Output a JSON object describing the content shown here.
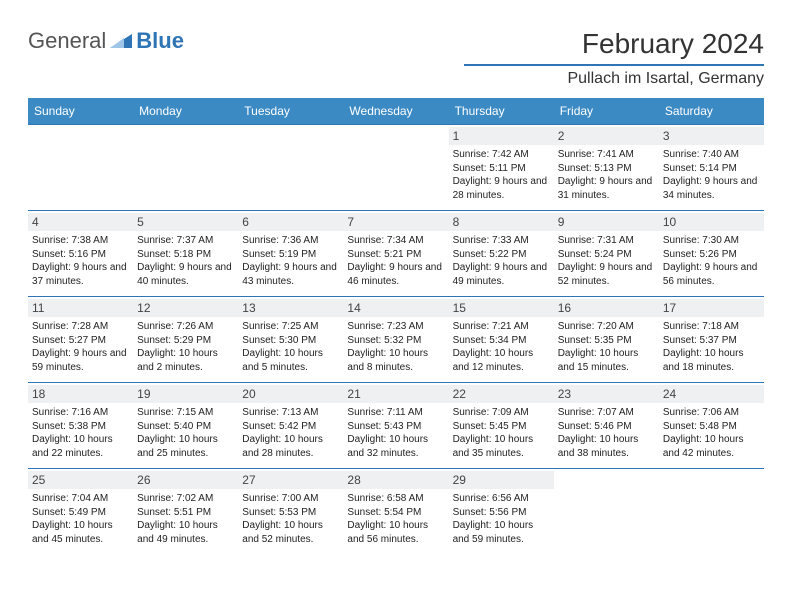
{
  "brand": {
    "word1": "General",
    "word2": "Blue"
  },
  "title": "February 2024",
  "location": "Pullach im Isartal, Germany",
  "colors": {
    "accent": "#3b8ac4",
    "rule": "#2f75b5",
    "daybg": "#eef0f2",
    "bg": "#ffffff"
  },
  "weekdays": [
    "Sunday",
    "Monday",
    "Tuesday",
    "Wednesday",
    "Thursday",
    "Friday",
    "Saturday"
  ],
  "layout": {
    "first_weekday_index": 4,
    "days_in_month": 29,
    "rows": 5
  },
  "days": {
    "1": {
      "sunrise": "7:42 AM",
      "sunset": "5:11 PM",
      "daylight": "9 hours and 28 minutes."
    },
    "2": {
      "sunrise": "7:41 AM",
      "sunset": "5:13 PM",
      "daylight": "9 hours and 31 minutes."
    },
    "3": {
      "sunrise": "7:40 AM",
      "sunset": "5:14 PM",
      "daylight": "9 hours and 34 minutes."
    },
    "4": {
      "sunrise": "7:38 AM",
      "sunset": "5:16 PM",
      "daylight": "9 hours and 37 minutes."
    },
    "5": {
      "sunrise": "7:37 AM",
      "sunset": "5:18 PM",
      "daylight": "9 hours and 40 minutes."
    },
    "6": {
      "sunrise": "7:36 AM",
      "sunset": "5:19 PM",
      "daylight": "9 hours and 43 minutes."
    },
    "7": {
      "sunrise": "7:34 AM",
      "sunset": "5:21 PM",
      "daylight": "9 hours and 46 minutes."
    },
    "8": {
      "sunrise": "7:33 AM",
      "sunset": "5:22 PM",
      "daylight": "9 hours and 49 minutes."
    },
    "9": {
      "sunrise": "7:31 AM",
      "sunset": "5:24 PM",
      "daylight": "9 hours and 52 minutes."
    },
    "10": {
      "sunrise": "7:30 AM",
      "sunset": "5:26 PM",
      "daylight": "9 hours and 56 minutes."
    },
    "11": {
      "sunrise": "7:28 AM",
      "sunset": "5:27 PM",
      "daylight": "9 hours and 59 minutes."
    },
    "12": {
      "sunrise": "7:26 AM",
      "sunset": "5:29 PM",
      "daylight": "10 hours and 2 minutes."
    },
    "13": {
      "sunrise": "7:25 AM",
      "sunset": "5:30 PM",
      "daylight": "10 hours and 5 minutes."
    },
    "14": {
      "sunrise": "7:23 AM",
      "sunset": "5:32 PM",
      "daylight": "10 hours and 8 minutes."
    },
    "15": {
      "sunrise": "7:21 AM",
      "sunset": "5:34 PM",
      "daylight": "10 hours and 12 minutes."
    },
    "16": {
      "sunrise": "7:20 AM",
      "sunset": "5:35 PM",
      "daylight": "10 hours and 15 minutes."
    },
    "17": {
      "sunrise": "7:18 AM",
      "sunset": "5:37 PM",
      "daylight": "10 hours and 18 minutes."
    },
    "18": {
      "sunrise": "7:16 AM",
      "sunset": "5:38 PM",
      "daylight": "10 hours and 22 minutes."
    },
    "19": {
      "sunrise": "7:15 AM",
      "sunset": "5:40 PM",
      "daylight": "10 hours and 25 minutes."
    },
    "20": {
      "sunrise": "7:13 AM",
      "sunset": "5:42 PM",
      "daylight": "10 hours and 28 minutes."
    },
    "21": {
      "sunrise": "7:11 AM",
      "sunset": "5:43 PM",
      "daylight": "10 hours and 32 minutes."
    },
    "22": {
      "sunrise": "7:09 AM",
      "sunset": "5:45 PM",
      "daylight": "10 hours and 35 minutes."
    },
    "23": {
      "sunrise": "7:07 AM",
      "sunset": "5:46 PM",
      "daylight": "10 hours and 38 minutes."
    },
    "24": {
      "sunrise": "7:06 AM",
      "sunset": "5:48 PM",
      "daylight": "10 hours and 42 minutes."
    },
    "25": {
      "sunrise": "7:04 AM",
      "sunset": "5:49 PM",
      "daylight": "10 hours and 45 minutes."
    },
    "26": {
      "sunrise": "7:02 AM",
      "sunset": "5:51 PM",
      "daylight": "10 hours and 49 minutes."
    },
    "27": {
      "sunrise": "7:00 AM",
      "sunset": "5:53 PM",
      "daylight": "10 hours and 52 minutes."
    },
    "28": {
      "sunrise": "6:58 AM",
      "sunset": "5:54 PM",
      "daylight": "10 hours and 56 minutes."
    },
    "29": {
      "sunrise": "6:56 AM",
      "sunset": "5:56 PM",
      "daylight": "10 hours and 59 minutes."
    }
  },
  "labels": {
    "sunrise": "Sunrise: ",
    "sunset": "Sunset: ",
    "daylight": "Daylight: "
  }
}
